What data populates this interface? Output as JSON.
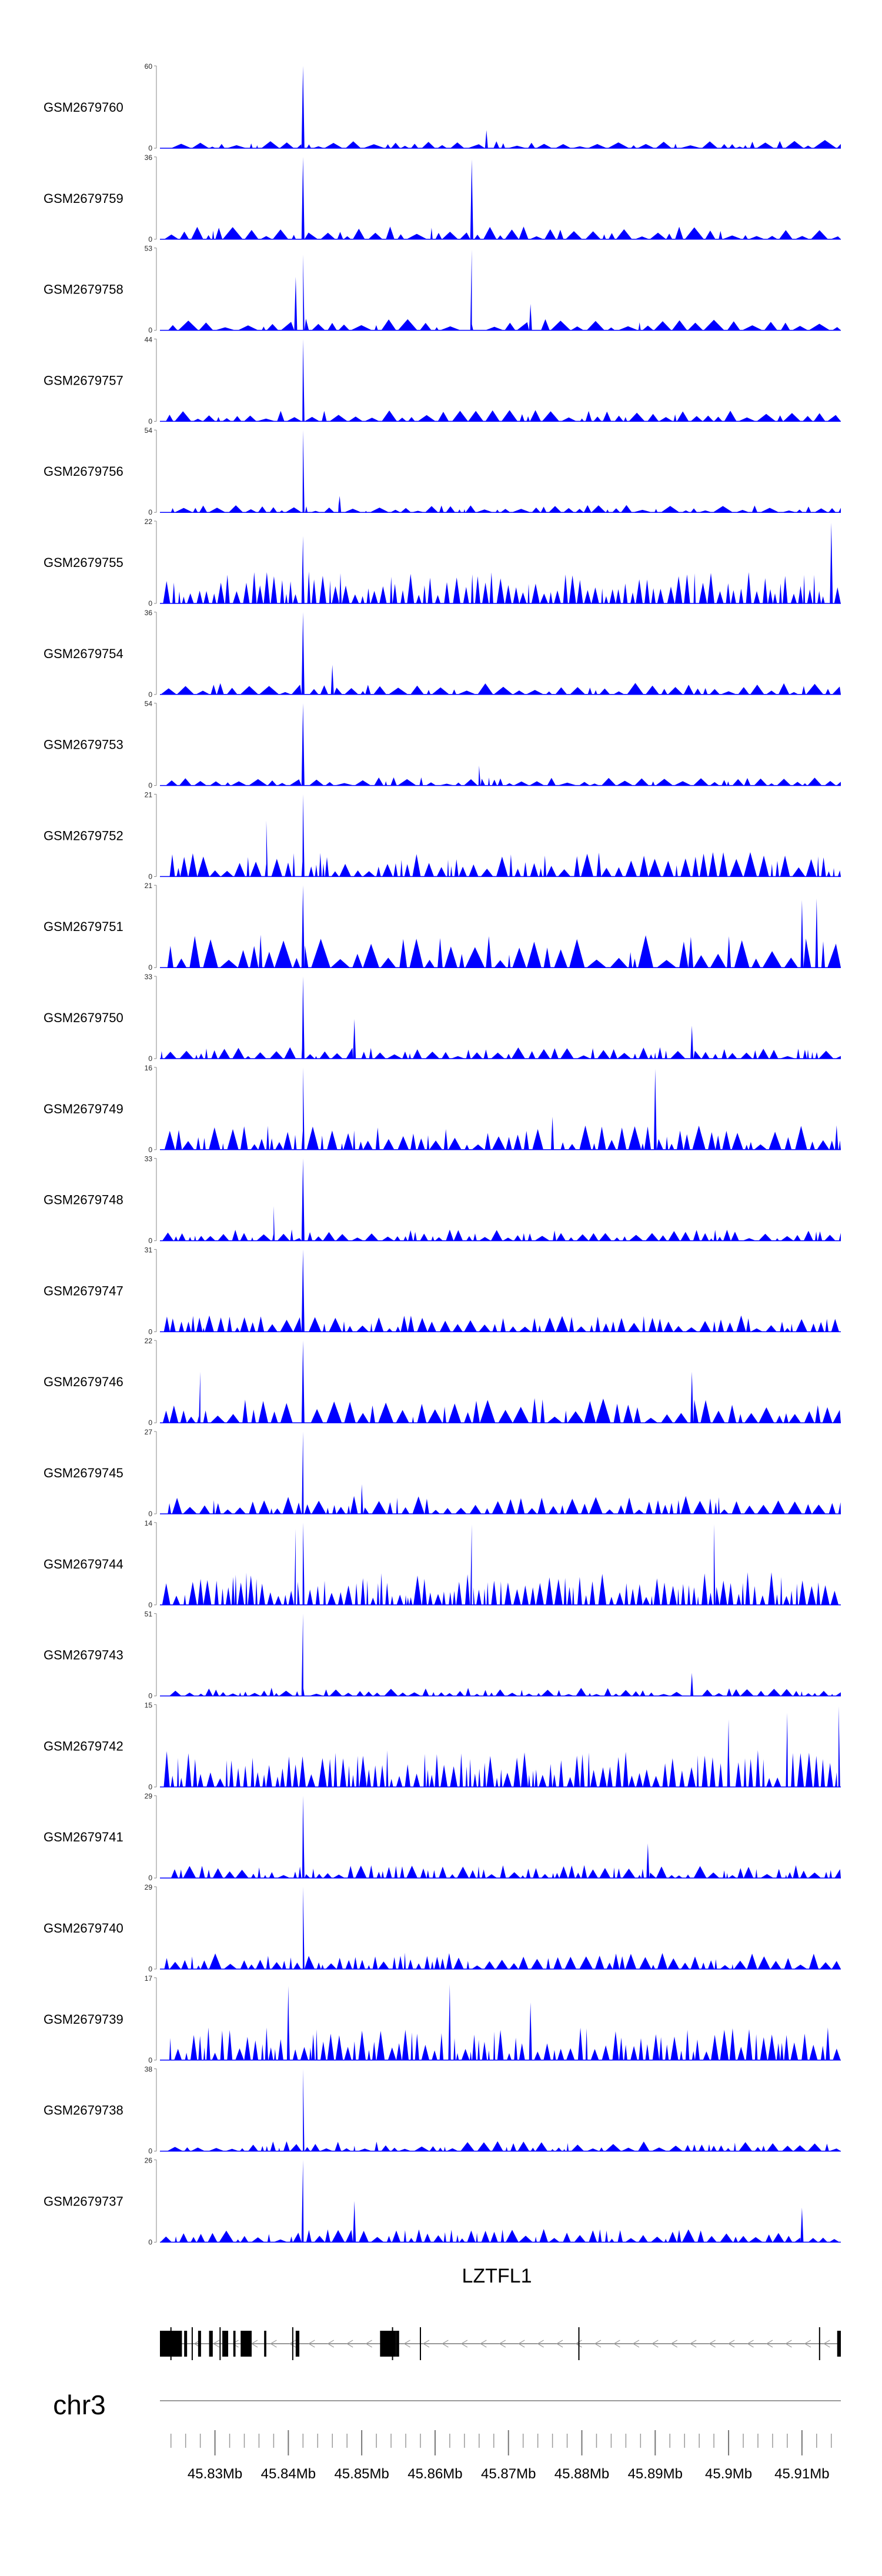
{
  "chart_data": {
    "type": "area",
    "title": "",
    "color": "#0000ff",
    "tracks": [
      {
        "name": "GSM2679760",
        "ymax": "60",
        "ymin": "0",
        "seed": 11,
        "baseline": 0.1,
        "nspike": 50,
        "peaks": [
          [
            45.842,
            1.0
          ],
          [
            45.867,
            0.22
          ]
        ]
      },
      {
        "name": "GSM2679759",
        "ymax": "36",
        "ymin": "0",
        "seed": 23,
        "baseline": 0.16,
        "nspike": 55,
        "peaks": [
          [
            45.842,
            1.0
          ],
          [
            45.865,
            0.97
          ],
          [
            45.9155,
            0.55
          ]
        ]
      },
      {
        "name": "GSM2679758",
        "ymax": "53",
        "ymin": "0",
        "seed": 37,
        "baseline": 0.14,
        "nspike": 55,
        "peaks": [
          [
            45.842,
            0.92
          ],
          [
            45.841,
            0.65
          ],
          [
            45.865,
            0.98
          ],
          [
            45.873,
            0.32
          ],
          [
            45.9155,
            0.38
          ]
        ]
      },
      {
        "name": "GSM2679757",
        "ymax": "44",
        "ymin": "0",
        "seed": 41,
        "baseline": 0.14,
        "nspike": 60,
        "peaks": [
          [
            45.842,
            1.0
          ],
          [
            45.9155,
            0.4
          ]
        ]
      },
      {
        "name": "GSM2679756",
        "ymax": "54",
        "ymin": "0",
        "seed": 53,
        "baseline": 0.09,
        "nspike": 60,
        "peaks": [
          [
            45.842,
            1.0
          ],
          [
            45.847,
            0.2
          ]
        ]
      },
      {
        "name": "GSM2679755",
        "ymax": "22",
        "ymin": "0",
        "seed": 67,
        "baseline": 0.4,
        "nspike": 170,
        "peaks": [
          [
            45.842,
            0.82
          ],
          [
            45.914,
            0.98
          ]
        ]
      },
      {
        "name": "GSM2679754",
        "ymax": "36",
        "ymin": "0",
        "seed": 71,
        "baseline": 0.14,
        "nspike": 60,
        "peaks": [
          [
            45.842,
            1.0
          ],
          [
            45.846,
            0.36
          ]
        ]
      },
      {
        "name": "GSM2679753",
        "ymax": "54",
        "ymin": "0",
        "seed": 83,
        "baseline": 0.1,
        "nspike": 60,
        "peaks": [
          [
            45.842,
            1.0
          ],
          [
            45.866,
            0.24
          ]
        ]
      },
      {
        "name": "GSM2679752",
        "ymax": "21",
        "ymin": "0",
        "seed": 97,
        "baseline": 0.3,
        "nspike": 95,
        "peaks": [
          [
            45.842,
            1.0
          ],
          [
            45.837,
            0.68
          ]
        ]
      },
      {
        "name": "GSM2679751",
        "ymax": "21",
        "ymin": "0",
        "seed": 101,
        "baseline": 0.4,
        "nspike": 60,
        "peaks": [
          [
            45.842,
            1.0
          ],
          [
            45.91,
            0.82
          ],
          [
            45.912,
            0.84
          ]
        ]
      },
      {
        "name": "GSM2679750",
        "ymax": "33",
        "ymin": "0",
        "seed": 113,
        "baseline": 0.14,
        "nspike": 75,
        "peaks": [
          [
            45.842,
            1.0
          ],
          [
            45.849,
            0.48
          ],
          [
            45.895,
            0.4
          ]
        ]
      },
      {
        "name": "GSM2679749",
        "ymax": "16",
        "ymin": "0",
        "seed": 127,
        "baseline": 0.3,
        "nspike": 95,
        "peaks": [
          [
            45.842,
            1.0
          ],
          [
            45.89,
            0.98
          ],
          [
            45.876,
            0.4
          ]
        ]
      },
      {
        "name": "GSM2679748",
        "ymax": "33",
        "ymin": "0",
        "seed": 131,
        "baseline": 0.14,
        "nspike": 80,
        "peaks": [
          [
            45.842,
            1.0
          ],
          [
            45.838,
            0.42
          ]
        ]
      },
      {
        "name": "GSM2679747",
        "ymax": "31",
        "ymin": "0",
        "seed": 149,
        "baseline": 0.2,
        "nspike": 95,
        "peaks": [
          [
            45.842,
            1.0
          ]
        ]
      },
      {
        "name": "GSM2679746",
        "ymax": "22",
        "ymin": "0",
        "seed": 151,
        "baseline": 0.3,
        "nspike": 75,
        "peaks": [
          [
            45.842,
            1.0
          ],
          [
            45.895,
            0.62
          ],
          [
            45.828,
            0.62
          ]
        ]
      },
      {
        "name": "GSM2679745",
        "ymax": "27",
        "ymin": "0",
        "seed": 163,
        "baseline": 0.22,
        "nspike": 85,
        "peaks": [
          [
            45.842,
            1.0
          ],
          [
            45.85,
            0.36
          ]
        ]
      },
      {
        "name": "GSM2679744",
        "ymax": "14",
        "ymin": "0",
        "seed": 173,
        "baseline": 0.4,
        "nspike": 160,
        "peaks": [
          [
            45.842,
            1.0
          ],
          [
            45.841,
            0.92
          ],
          [
            45.865,
            0.98
          ],
          [
            45.898,
            0.98
          ]
        ]
      },
      {
        "name": "GSM2679743",
        "ymax": "51",
        "ymin": "0",
        "seed": 181,
        "baseline": 0.1,
        "nspike": 85,
        "peaks": [
          [
            45.842,
            1.0
          ],
          [
            45.895,
            0.28
          ]
        ]
      },
      {
        "name": "GSM2679742",
        "ymax": "15",
        "ymin": "0",
        "seed": 191,
        "baseline": 0.45,
        "nspike": 160,
        "peaks": [
          [
            45.915,
            0.98
          ],
          [
            45.908,
            0.9
          ],
          [
            45.9,
            0.82
          ]
        ]
      },
      {
        "name": "GSM2679741",
        "ymax": "29",
        "ymin": "0",
        "seed": 199,
        "baseline": 0.16,
        "nspike": 95,
        "peaks": [
          [
            45.842,
            1.0
          ],
          [
            45.889,
            0.42
          ]
        ]
      },
      {
        "name": "GSM2679740",
        "ymax": "29",
        "ymin": "0",
        "seed": 211,
        "baseline": 0.2,
        "nspike": 90,
        "peaks": [
          [
            45.842,
            1.0
          ]
        ]
      },
      {
        "name": "GSM2679739",
        "ymax": "17",
        "ymin": "0",
        "seed": 223,
        "baseline": 0.4,
        "nspike": 160,
        "peaks": [
          [
            45.84,
            0.9
          ],
          [
            45.862,
            0.92
          ],
          [
            45.873,
            0.7
          ]
        ]
      },
      {
        "name": "GSM2679738",
        "ymax": "38",
        "ymin": "0",
        "seed": 227,
        "baseline": 0.12,
        "nspike": 75,
        "peaks": [
          [
            45.842,
            1.0
          ]
        ]
      },
      {
        "name": "GSM2679737",
        "ymax": "26",
        "ymin": "0",
        "seed": 239,
        "baseline": 0.16,
        "nspike": 85,
        "peaks": [
          [
            45.842,
            1.0
          ],
          [
            45.849,
            0.5
          ],
          [
            45.91,
            0.42
          ]
        ]
      }
    ],
    "gene": {
      "name": "LZTFL1",
      "strand": "-",
      "start": 45.8225,
      "end": 45.9153,
      "exons": [
        [
          45.8225,
          45.8255
        ],
        [
          45.8258,
          45.8262
        ],
        [
          45.8277,
          45.8281
        ],
        [
          45.8292,
          45.8297
        ],
        [
          45.831,
          45.8318
        ],
        [
          45.8325,
          45.8328
        ],
        [
          45.8335,
          45.835
        ],
        [
          45.8367,
          45.837
        ],
        [
          45.841,
          45.8415
        ],
        [
          45.8525,
          45.8547
        ],
        [
          45.8547,
          45.8551
        ],
        [
          45.9148,
          45.9153
        ]
      ],
      "intron_marks": [
        45.824,
        45.8269,
        45.8307,
        45.8406,
        45.8542,
        45.858,
        45.8796,
        45.9124
      ]
    },
    "axis": {
      "chromosome": "chr3",
      "xmin": 45.8225,
      "xmax": 45.9153,
      "ticks": [
        45.83,
        45.84,
        45.85,
        45.86,
        45.87,
        45.88,
        45.89,
        45.9,
        45.91
      ],
      "tick_labels": [
        "45.83Mb",
        "45.84Mb",
        "45.85Mb",
        "45.86Mb",
        "45.87Mb",
        "45.88Mb",
        "45.89Mb",
        "45.9Mb",
        "45.91Mb"
      ],
      "minor_step": 0.002
    }
  }
}
